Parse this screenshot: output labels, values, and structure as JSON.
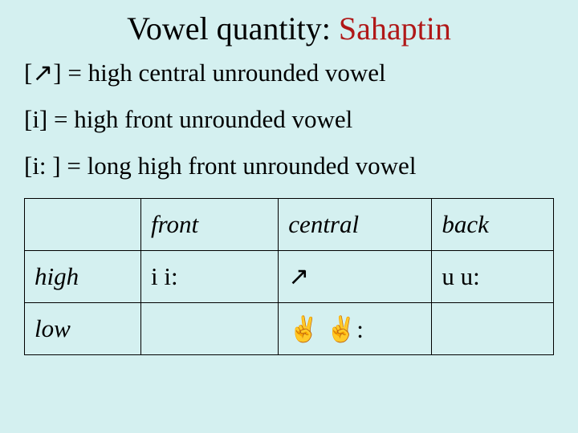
{
  "background_color": "#d4f0f0",
  "title": {
    "prefix": "Vowel quantity:  ",
    "highlight": "Sahaptin",
    "fontsize": 40,
    "highlight_color": "#b01818",
    "prefix_color": "#000000"
  },
  "definitions": [
    "[↗] = high central unrounded vowel",
    "[i] = high front unrounded vowel",
    "[i: ] = long high front unrounded vowel"
  ],
  "table": {
    "border_color": "#000000",
    "header_fontstyle": "italic",
    "rowlabel_fontstyle": "italic",
    "cell_fontsize": 31,
    "columns": [
      "",
      "front",
      "central",
      "back"
    ],
    "column_widths": [
      "22%",
      "26%",
      "29%",
      "23%"
    ],
    "rows": [
      {
        "label": "high",
        "cells": [
          "i i:",
          "↗",
          "u u:"
        ]
      },
      {
        "label": "low",
        "cells": [
          "",
          "✌   ✌:",
          ""
        ]
      }
    ]
  }
}
